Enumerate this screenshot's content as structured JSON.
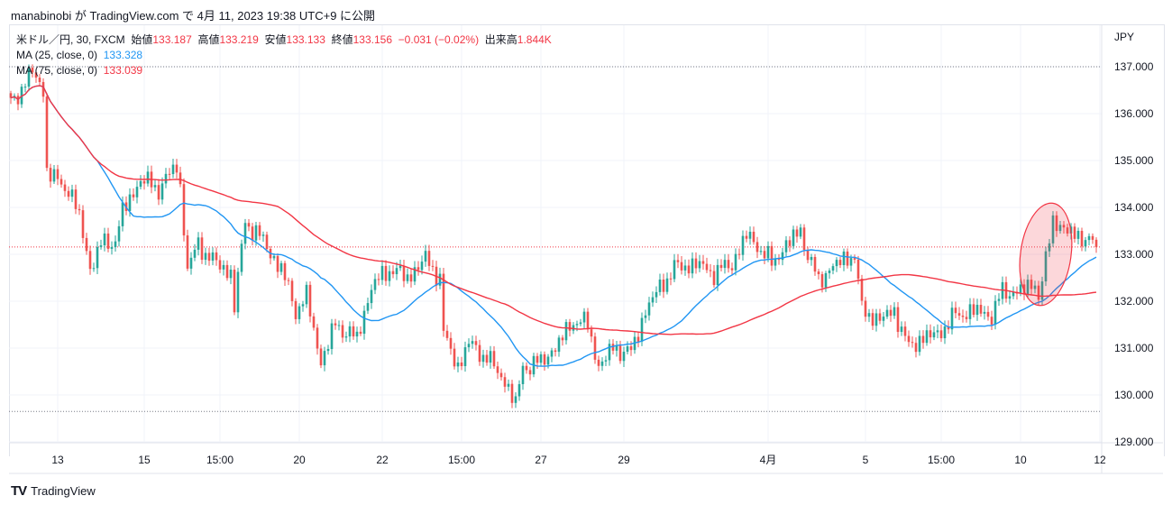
{
  "published": "manabinobi が TradingView.com で 4月 11, 2023 19:38 UTC+9 に公開",
  "legend": {
    "symbol": "米ドル／円, 30, FXCM",
    "open_label": "始値",
    "open": "133.187",
    "high_label": "高値",
    "high": "133.219",
    "low_label": "安値",
    "low": "133.133",
    "close_label": "終値",
    "close": "133.156",
    "change": "−0.031 (−0.02%)",
    "volume_label": "出来高",
    "volume": "1.844K",
    "ma25_label": "MA (25, close, 0)",
    "ma25_value": "133.328",
    "ma75_label": "MA (75, close, 0)",
    "ma75_value": "133.039"
  },
  "footer": {
    "brand": "TradingView"
  },
  "colors": {
    "up": "#26a69a",
    "down": "#ef5350",
    "ma25": "#2196f3",
    "ma75": "#f23645",
    "highlight": "#f23645"
  },
  "chart_data": {
    "type": "candlestick",
    "currency": "JPY",
    "ylim": [
      128.7,
      137.9
    ],
    "yticks": [
      137,
      136,
      135,
      134,
      133,
      132,
      131,
      130,
      129
    ],
    "ytick_labels": [
      "137.000",
      "136.000",
      "135.000",
      "134.000",
      "133.000",
      "132.000",
      "131.000",
      "130.000",
      "129.000"
    ],
    "bar_count": 302,
    "xticks": [
      {
        "bar": 13,
        "label": "13"
      },
      {
        "bar": 37,
        "label": "15"
      },
      {
        "bar": 58,
        "label": "15:00"
      },
      {
        "bar": 80,
        "label": "20"
      },
      {
        "bar": 103,
        "label": "22"
      },
      {
        "bar": 125,
        "label": "15:00"
      },
      {
        "bar": 147,
        "label": "27"
      },
      {
        "bar": 170,
        "label": "29"
      },
      {
        "bar": 210,
        "label": "4月"
      },
      {
        "bar": 237,
        "label": "5"
      },
      {
        "bar": 258,
        "label": "15:00"
      },
      {
        "bar": 280,
        "label": "10"
      },
      {
        "bar": 302,
        "label": "12"
      }
    ],
    "close_path": [
      [
        0,
        136.2
      ],
      [
        6,
        136.9
      ],
      [
        9,
        136.5
      ],
      [
        10,
        134.8
      ],
      [
        12,
        134.6
      ],
      [
        16,
        134.4
      ],
      [
        19,
        133.8
      ],
      [
        22,
        132.7
      ],
      [
        25,
        133.2
      ],
      [
        29,
        133.3
      ],
      [
        31,
        133.9
      ],
      [
        36,
        134.6
      ],
      [
        41,
        134.4
      ],
      [
        46,
        134.9
      ],
      [
        47,
        134.4
      ],
      [
        49,
        132.7
      ],
      [
        52,
        133.2
      ],
      [
        57,
        132.8
      ],
      [
        61,
        132.6
      ],
      [
        62,
        131.9
      ],
      [
        65,
        133.7
      ],
      [
        70,
        133.3
      ],
      [
        72,
        133.0
      ],
      [
        75,
        132.7
      ],
      [
        79,
        131.8
      ],
      [
        82,
        132.1
      ],
      [
        86,
        130.7
      ],
      [
        90,
        131.5
      ],
      [
        96,
        131.2
      ],
      [
        100,
        132.3
      ],
      [
        105,
        132.7
      ],
      [
        110,
        132.5
      ],
      [
        115,
        132.9
      ],
      [
        119,
        132.5
      ],
      [
        120,
        131.3
      ],
      [
        124,
        130.6
      ],
      [
        127,
        131.1
      ],
      [
        132,
        130.8
      ],
      [
        137,
        130.3
      ],
      [
        140,
        129.8
      ],
      [
        142,
        130.6
      ],
      [
        147,
        130.7
      ],
      [
        152,
        131.1
      ],
      [
        156,
        131.6
      ],
      [
        160,
        131.5
      ],
      [
        163,
        130.6
      ],
      [
        167,
        131.0
      ],
      [
        172,
        130.9
      ],
      [
        176,
        131.8
      ],
      [
        180,
        132.3
      ],
      [
        184,
        132.7
      ],
      [
        190,
        132.8
      ],
      [
        195,
        132.6
      ],
      [
        200,
        132.8
      ],
      [
        204,
        133.4
      ],
      [
        207,
        133.2
      ],
      [
        211,
        132.8
      ],
      [
        215,
        133.2
      ],
      [
        219,
        133.5
      ],
      [
        221,
        133.0
      ],
      [
        224,
        132.4
      ],
      [
        227,
        132.7
      ],
      [
        234,
        133.0
      ],
      [
        236,
        131.8
      ],
      [
        241,
        131.6
      ],
      [
        245,
        131.8
      ],
      [
        249,
        131.0
      ],
      [
        252,
        131.2
      ],
      [
        257,
        131.3
      ],
      [
        262,
        131.7
      ],
      [
        267,
        131.8
      ],
      [
        272,
        131.7
      ],
      [
        275,
        132.2
      ],
      [
        280,
        132.2
      ],
      [
        284,
        132.4
      ],
      [
        285,
        132.1
      ],
      [
        287,
        132.8
      ],
      [
        289,
        133.8
      ],
      [
        292,
        133.5
      ],
      [
        296,
        133.4
      ],
      [
        299,
        133.3
      ],
      [
        301,
        133.156
      ]
    ],
    "ma_periods": [
      25,
      75
    ],
    "hlines": [
      {
        "price": 137.0,
        "style": "dotted-gray"
      },
      {
        "price": 129.65,
        "style": "dotted-gray"
      },
      {
        "price": 133.156,
        "style": "dotted-red"
      }
    ],
    "highlight": {
      "type": "ellipse",
      "bar_center": 287,
      "price_center": 133.0,
      "bar_radius": 7,
      "price_radius": 1.1
    }
  }
}
